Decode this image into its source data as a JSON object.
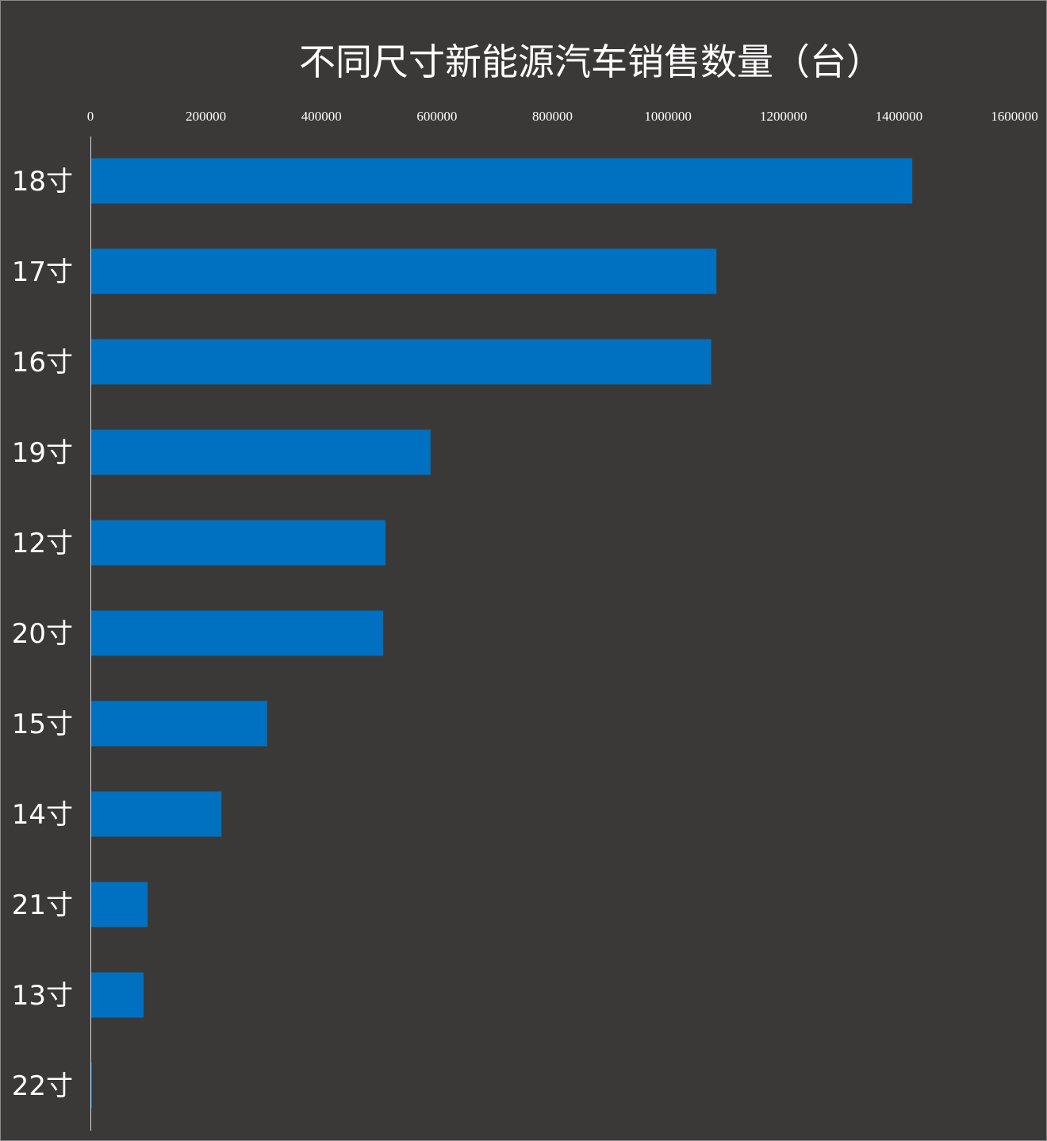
{
  "chart_data": {
    "type": "bar",
    "orientation": "horizontal",
    "title": "不同尺寸新能源汽车销售数量（台）",
    "xlabel": "",
    "ylabel": "",
    "xlim": [
      0,
      1600000
    ],
    "x_ticks": [
      "0",
      "200000",
      "400000",
      "600000",
      "800000",
      "1000000",
      "1200000",
      "1400000",
      "1600000"
    ],
    "categories": [
      "18寸",
      "17寸",
      "16寸",
      "19寸",
      "12寸",
      "20寸",
      "15寸",
      "14寸",
      "21寸",
      "13寸",
      "22寸"
    ],
    "values": [
      1423000,
      1084000,
      1075000,
      589000,
      511000,
      507000,
      306000,
      227000,
      99000,
      92000,
      1500
    ],
    "grid": false,
    "legend": "none",
    "colors": {
      "bar": "#0070c0",
      "background": "#3b3938",
      "text": "#ffffff",
      "axis": "#d9d9d9"
    }
  }
}
